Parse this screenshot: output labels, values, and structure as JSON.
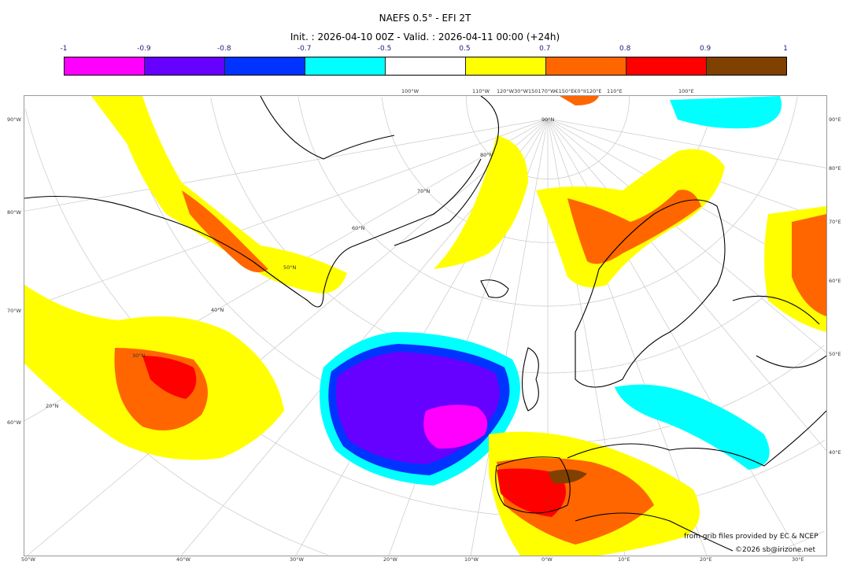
{
  "title": "NAEFS 0.5° - EFI 2T",
  "subtitle": "Init. : 2026-04-10 00Z - Valid. : 2026-04-11 00:00 (+24h)",
  "colorbar": {
    "ticks": [
      "-1",
      "-0.9",
      "-0.8",
      "-0.7",
      "-0.5",
      "0.5",
      "0.7",
      "0.8",
      "0.9",
      "1"
    ],
    "colors": [
      "#ff00ff",
      "#6600ff",
      "#0033ff",
      "#00ffff",
      "#ffffff",
      "#ffff00",
      "#ff6600",
      "#ff0000",
      "#804000"
    ]
  },
  "axes": {
    "bottom": [
      "50°W",
      "40°W",
      "30°W",
      "20°W",
      "10°W",
      "0°W",
      "10°E",
      "20°E",
      "30°E"
    ],
    "left": [
      "90°W",
      "80°W",
      "70°W",
      "60°W"
    ],
    "right": [
      "90°E",
      "80°E",
      "70°E",
      "60°E",
      "50°E",
      "40°E"
    ],
    "top": [
      "100°W",
      "110°W",
      "120°W30°W150170°W€150°E€0°II120°E",
      "110°E",
      "100°E"
    ],
    "lat_labels": [
      "90°N",
      "80°N",
      "70°N",
      "60°N",
      "50°N",
      "40°N",
      "30°N",
      "20°N"
    ]
  },
  "credits": {
    "source": "from grib files provided by EC & NCEP",
    "copyright": "©2026 sb@irizone.net"
  }
}
